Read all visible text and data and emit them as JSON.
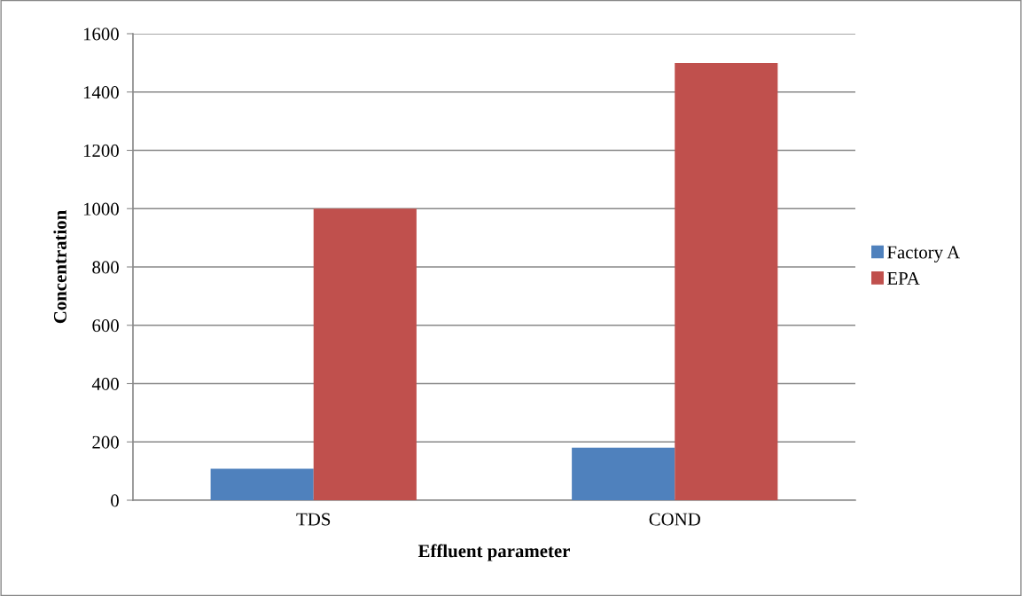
{
  "chart_data": {
    "type": "bar",
    "xlabel": "Effluent parameter",
    "ylabel": "Concentration",
    "categories": [
      "TDS",
      "COND"
    ],
    "series": [
      {
        "name": "Factory A",
        "color": "#4f81bd",
        "values": [
          108,
          180
        ]
      },
      {
        "name": "EPA",
        "color": "#c0504d",
        "values": [
          1000,
          1500
        ]
      }
    ],
    "ylim": [
      0,
      1600
    ],
    "yticks": [
      0,
      200,
      400,
      600,
      800,
      1000,
      1200,
      1400,
      1600
    ],
    "grid": "y",
    "legend": "right"
  }
}
